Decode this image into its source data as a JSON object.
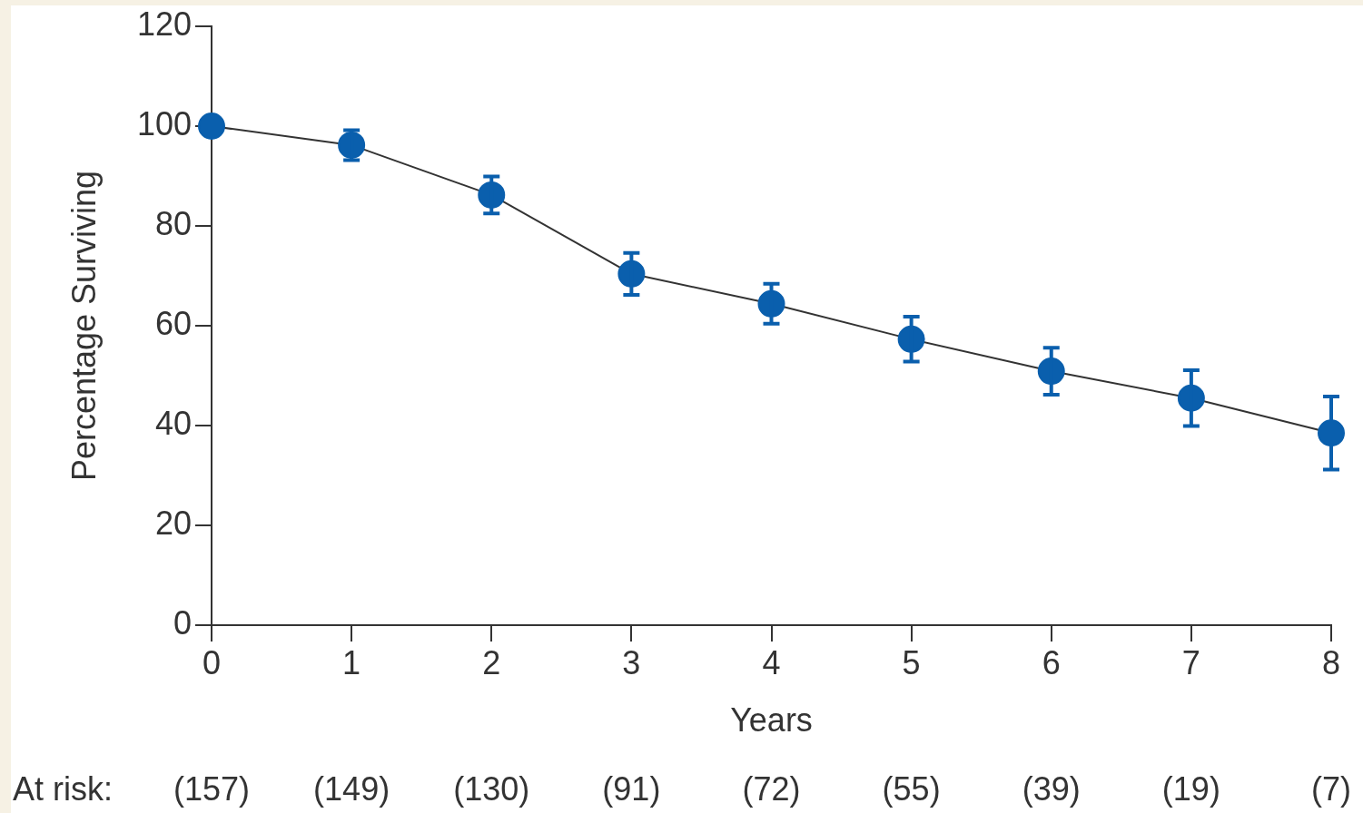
{
  "chart_data": {
    "type": "line",
    "xlabel": "Years",
    "ylabel": "Percentage Surviving",
    "x": [
      0,
      1,
      2,
      3,
      4,
      5,
      6,
      7,
      8
    ],
    "series": [
      {
        "color": "#0a5fad",
        "values": [
          100,
          96.2,
          86.2,
          70.4,
          64.4,
          57.3,
          50.9,
          45.5,
          38.5
        ],
        "errors": [
          null,
          3,
          3.7,
          4.2,
          4,
          4.5,
          4.7,
          5.6,
          7.3
        ]
      }
    ],
    "xlim": [
      0,
      8
    ],
    "xticks": [
      0,
      1,
      2,
      3,
      4,
      5,
      6,
      7,
      8
    ],
    "ylim": [
      0,
      120
    ],
    "yticks": [
      0,
      20,
      40,
      60,
      80,
      100,
      120
    ],
    "grid": false,
    "legend": false,
    "marker": "circle",
    "line_style": "solid",
    "annotations": [
      "At risk:",
      "(157)",
      "(149)",
      "(130)",
      "(91)",
      "(72)",
      "(55)",
      "(39)",
      "(19)",
      "(7)"
    ]
  }
}
